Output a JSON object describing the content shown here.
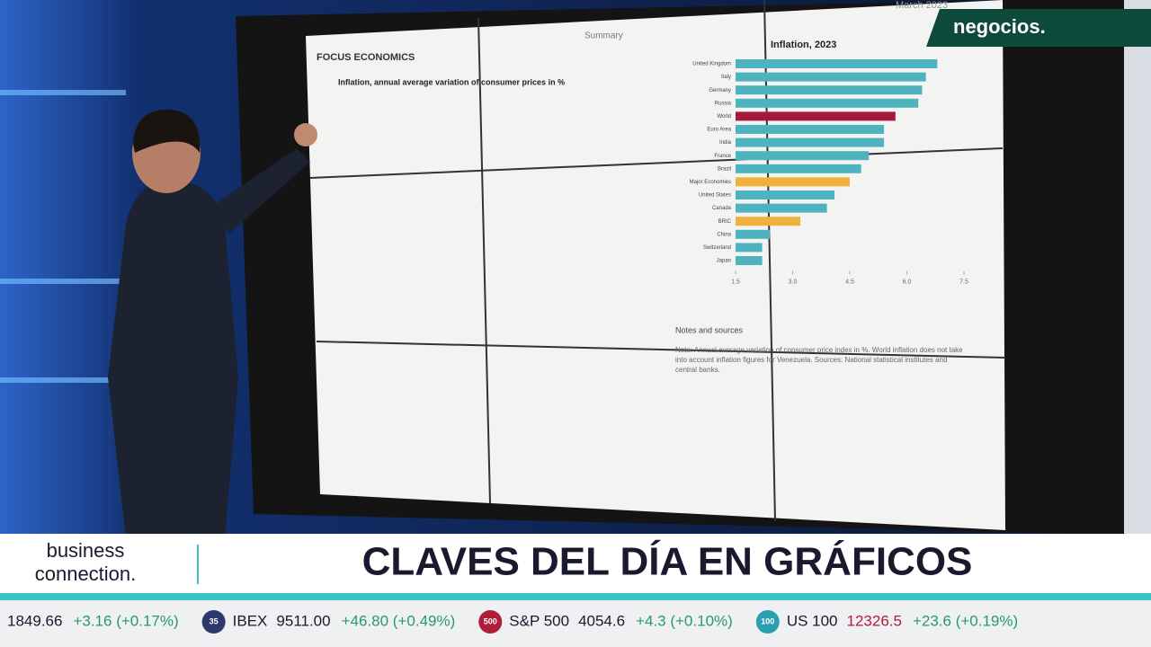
{
  "channel_logo": "negocios.",
  "screen": {
    "brand": "FOCUS ECONOMICS",
    "section": "Summary",
    "date": "March 2023",
    "table_title": "Inflation, annual average variation of consumer prices in %",
    "chart": {
      "title": "Inflation, 2023",
      "categories": [
        "United Kingdom",
        "Italy",
        "Germany",
        "Russia",
        "World",
        "Euro Area",
        "India",
        "France",
        "Brazil",
        "Major Economies",
        "United States",
        "Canada",
        "BRIC",
        "China",
        "Switzerland",
        "Japan"
      ],
      "values": [
        6.8,
        6.5,
        6.4,
        6.3,
        5.7,
        5.4,
        5.4,
        5.0,
        4.8,
        4.5,
        4.1,
        3.9,
        3.2,
        2.4,
        2.2,
        2.2
      ],
      "colors": [
        "#4fb3bf",
        "#4fb3bf",
        "#4fb3bf",
        "#4fb3bf",
        "#a3193e",
        "#4fb3bf",
        "#4fb3bf",
        "#4fb3bf",
        "#4fb3bf",
        "#f0b03c",
        "#4fb3bf",
        "#4fb3bf",
        "#f0b03c",
        "#4fb3bf",
        "#4fb3bf",
        "#4fb3bf"
      ],
      "xlim": [
        1.5,
        7.5
      ],
      "xticks": [
        1.5,
        {
          "value": 3,
          "label": "3.0"
        },
        4.5,
        {
          "value": 6,
          "label": "6.0"
        },
        7.5
      ]
    },
    "notes_title": "Notes and sources",
    "notes": "Note: Annual average variation of consumer price index in %. World inflation does not take into account inflation figures for Venezuela. Sources: National statistical institutes and central banks."
  },
  "program": {
    "name": "business connection.",
    "headline": "CLAVES DEL DÍA EN GRÁFICOS"
  },
  "ticker": [
    {
      "badge": null,
      "name": null,
      "value": "1849.66",
      "change": "+3.16 (+0.17%)"
    },
    {
      "badge": "35",
      "name": "IBEX",
      "value": "9511.00",
      "change": "+46.80 (+0.49%)"
    },
    {
      "badge": "500",
      "name": "S&P 500",
      "value": "4054.6",
      "change": "+4.3 (+0.10%)"
    },
    {
      "badge": "100",
      "name": "US 100",
      "value": "12326.5",
      "change": "+23.6 (+0.19%)"
    }
  ]
}
